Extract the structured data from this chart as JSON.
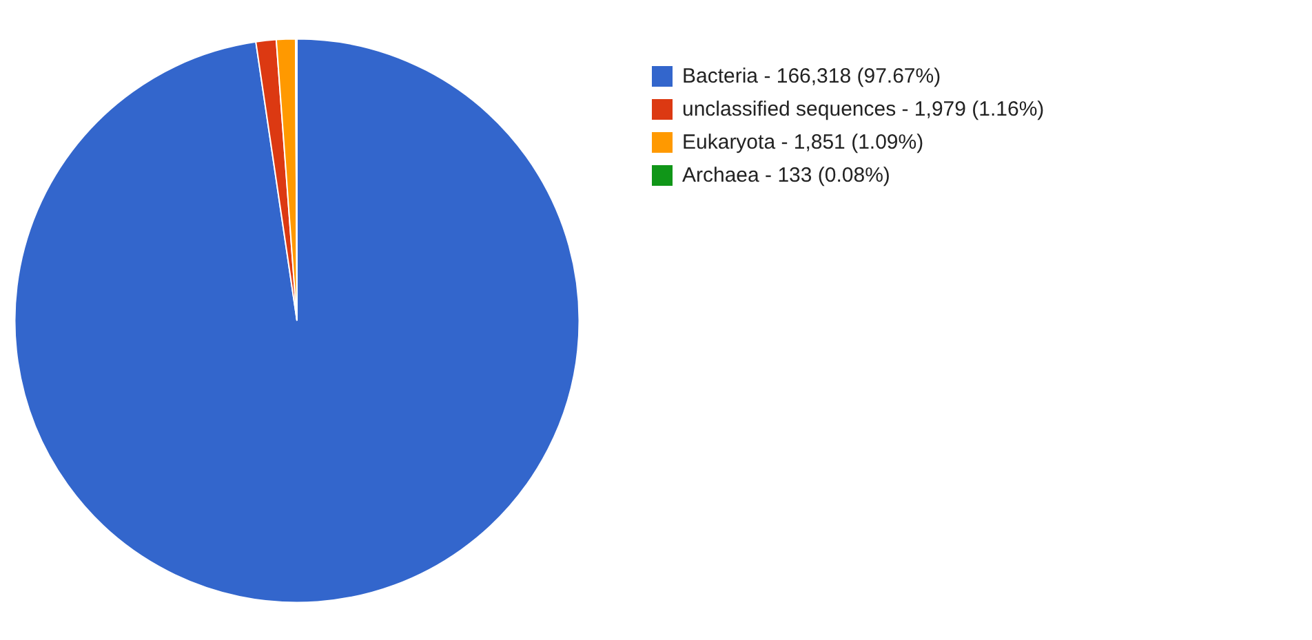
{
  "chart_data": {
    "type": "pie",
    "categories": [
      "Bacteria - 166,318 (97.67%)",
      "unclassified sequences - 1,979 (1.16%)",
      "Eukaryota - 1,851 (1.09%)",
      "Archaea - 133 (0.08%)"
    ],
    "values": [
      97.67,
      1.16,
      1.09,
      0.08
    ],
    "colors": [
      "#3366cc",
      "#dc3912",
      "#ff9900",
      "#109618"
    ],
    "legend": "right"
  }
}
